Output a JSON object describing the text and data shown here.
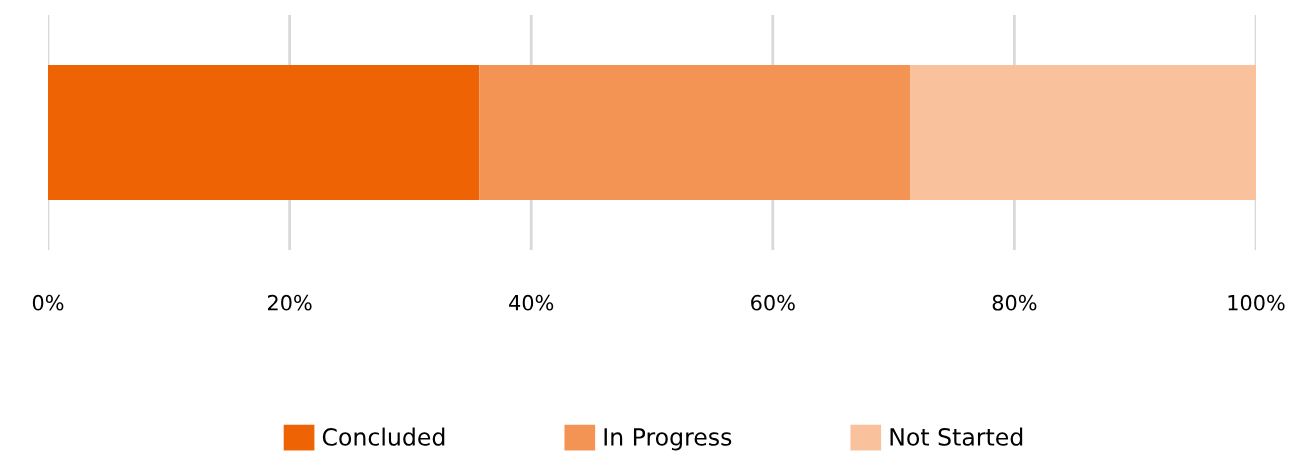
{
  "chart_data": {
    "type": "bar",
    "orientation": "horizontal",
    "stacked": true,
    "categories": [
      null
    ],
    "series": [
      {
        "name": "Concluded",
        "color": "#ee6405",
        "values": [
          35.7
        ]
      },
      {
        "name": "In Progress",
        "color": "#f39455",
        "values": [
          35.7
        ]
      },
      {
        "name": "Not Started",
        "color": "#f9c19c",
        "values": [
          28.6
        ]
      }
    ],
    "xlim": [
      0,
      100
    ],
    "xticks": [
      {
        "value": 0,
        "label": "0%"
      },
      {
        "value": 20,
        "label": "20%"
      },
      {
        "value": 40,
        "label": "40%"
      },
      {
        "value": 60,
        "label": "60%"
      },
      {
        "value": 80,
        "label": "80%"
      },
      {
        "value": 100,
        "label": "100%"
      }
    ],
    "grid": "x",
    "legend": "bottom",
    "tick_labels": "x"
  }
}
